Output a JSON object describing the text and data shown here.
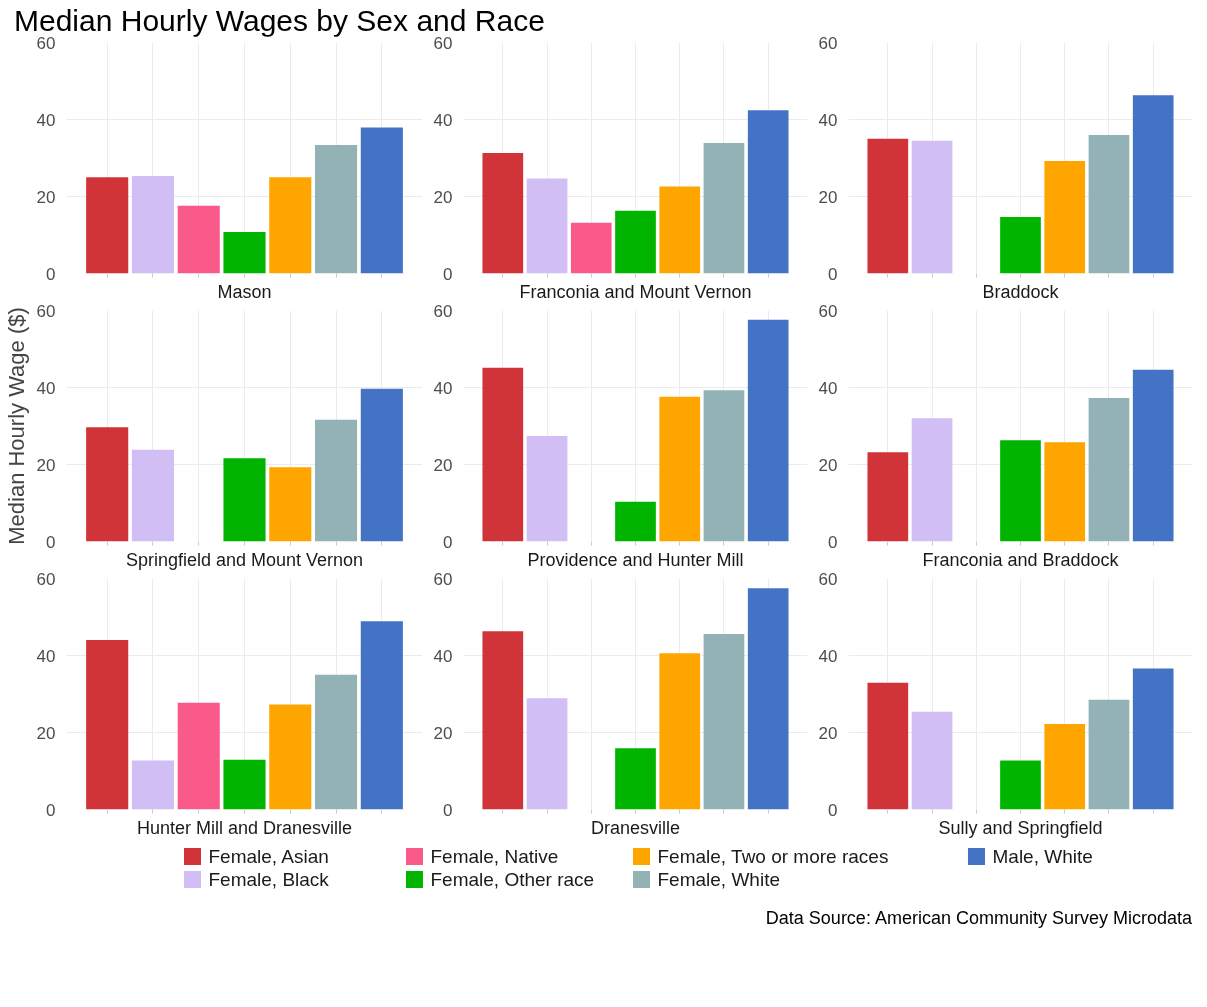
{
  "chart_data": [
    {
      "type": "bar",
      "title": "Median Hourly Wages by Sex and Race",
      "xlabel": "Mason",
      "categories": [
        null
      ],
      "ylim": [
        0,
        60
      ],
      "yticks": [
        0,
        20,
        40,
        60
      ],
      "grid": true,
      "series": [
        {
          "color": "#d13438",
          "values": [
            25
          ]
        },
        {
          "color": "#d1bef5",
          "values": [
            25.3
          ]
        },
        {
          "color": "#f95a8a",
          "values": [
            17.6
          ]
        },
        {
          "color": "#00b400",
          "values": [
            10.8
          ]
        },
        {
          "color": "#ffa500",
          "values": [
            25
          ]
        },
        {
          "color": "#93b2b5",
          "values": [
            33.4
          ]
        },
        {
          "color": "#4472c4",
          "values": [
            37.9
          ]
        }
      ]
    },
    {
      "type": "bar",
      "xlabel": "Franconia and Mount Vernon",
      "categories": [
        null
      ],
      "ylim": [
        0,
        60
      ],
      "yticks": [
        0,
        20,
        40,
        60
      ],
      "grid": true,
      "series": [
        {
          "color": "#d13438",
          "values": [
            31.3
          ]
        },
        {
          "color": "#d1bef5",
          "values": [
            24.7
          ]
        },
        {
          "color": "#f95a8a",
          "values": [
            13.2
          ]
        },
        {
          "color": "#00b400",
          "values": [
            16.3
          ]
        },
        {
          "color": "#ffa500",
          "values": [
            22.6
          ]
        },
        {
          "color": "#93b2b5",
          "values": [
            33.9
          ]
        },
        {
          "color": "#4472c4",
          "values": [
            42.4
          ]
        }
      ]
    },
    {
      "type": "bar",
      "xlabel": "Braddock",
      "categories": [
        null
      ],
      "ylim": [
        0,
        60
      ],
      "yticks": [
        0,
        20,
        40,
        60
      ],
      "grid": true,
      "series": [
        {
          "color": "#d13438",
          "values": [
            35
          ]
        },
        {
          "color": "#d1bef5",
          "values": [
            34.5
          ]
        },
        {
          "color": "#f95a8a",
          "values": [
            null
          ]
        },
        {
          "color": "#00b400",
          "values": [
            14.7
          ]
        },
        {
          "color": "#ffa500",
          "values": [
            29.2
          ]
        },
        {
          "color": "#93b2b5",
          "values": [
            36
          ]
        },
        {
          "color": "#4472c4",
          "values": [
            46.3
          ]
        }
      ]
    },
    {
      "type": "bar",
      "xlabel": "Springfield and Mount Vernon",
      "ylabel": "Median Hourly Wage ($)",
      "categories": [
        null
      ],
      "ylim": [
        0,
        60
      ],
      "yticks": [
        0,
        20,
        40,
        60
      ],
      "grid": true,
      "series": [
        {
          "color": "#d13438",
          "values": [
            29.7
          ]
        },
        {
          "color": "#d1bef5",
          "values": [
            23.8
          ]
        },
        {
          "color": "#f95a8a",
          "values": [
            null
          ]
        },
        {
          "color": "#00b400",
          "values": [
            21.6
          ]
        },
        {
          "color": "#ffa500",
          "values": [
            19.3
          ]
        },
        {
          "color": "#93b2b5",
          "values": [
            31.6
          ]
        },
        {
          "color": "#4472c4",
          "values": [
            39.7
          ]
        }
      ]
    },
    {
      "type": "bar",
      "xlabel": "Providence and Hunter Mill",
      "categories": [
        null
      ],
      "ylim": [
        0,
        60
      ],
      "yticks": [
        0,
        20,
        40,
        60
      ],
      "grid": true,
      "series": [
        {
          "color": "#d13438",
          "values": [
            45.1
          ]
        },
        {
          "color": "#d1bef5",
          "values": [
            27.4
          ]
        },
        {
          "color": "#f95a8a",
          "values": [
            null
          ]
        },
        {
          "color": "#00b400",
          "values": [
            10.3
          ]
        },
        {
          "color": "#ffa500",
          "values": [
            37.6
          ]
        },
        {
          "color": "#93b2b5",
          "values": [
            39.3
          ]
        },
        {
          "color": "#4472c4",
          "values": [
            57.6
          ]
        }
      ]
    },
    {
      "type": "bar",
      "xlabel": "Franconia and Braddock",
      "categories": [
        null
      ],
      "ylim": [
        0,
        60
      ],
      "yticks": [
        0,
        20,
        40,
        60
      ],
      "grid": true,
      "series": [
        {
          "color": "#d13438",
          "values": [
            23.2
          ]
        },
        {
          "color": "#d1bef5",
          "values": [
            32
          ]
        },
        {
          "color": "#f95a8a",
          "values": [
            null
          ]
        },
        {
          "color": "#00b400",
          "values": [
            26.3
          ]
        },
        {
          "color": "#ffa500",
          "values": [
            25.8
          ]
        },
        {
          "color": "#93b2b5",
          "values": [
            37.3
          ]
        },
        {
          "color": "#4472c4",
          "values": [
            44.6
          ]
        }
      ]
    },
    {
      "type": "bar",
      "xlabel": "Hunter Mill and Dranesville",
      "categories": [
        null
      ],
      "ylim": [
        0,
        60
      ],
      "yticks": [
        0,
        20,
        40,
        60
      ],
      "grid": true,
      "series": [
        {
          "color": "#d13438",
          "values": [
            44
          ]
        },
        {
          "color": "#d1bef5",
          "values": [
            12.7
          ]
        },
        {
          "color": "#f95a8a",
          "values": [
            27.7
          ]
        },
        {
          "color": "#00b400",
          "values": [
            12.9
          ]
        },
        {
          "color": "#ffa500",
          "values": [
            27.3
          ]
        },
        {
          "color": "#93b2b5",
          "values": [
            35
          ]
        },
        {
          "color": "#4472c4",
          "values": [
            48.9
          ]
        }
      ]
    },
    {
      "type": "bar",
      "xlabel": "Dranesville",
      "categories": [
        null
      ],
      "ylim": [
        0,
        60
      ],
      "yticks": [
        0,
        20,
        40,
        60
      ],
      "grid": true,
      "legend": "bottom",
      "series": [
        {
          "name": "Female, Asian",
          "color": "#d13438",
          "values": [
            46.3
          ]
        },
        {
          "name": "Female, Black",
          "color": "#d1bef5",
          "values": [
            28.9
          ]
        },
        {
          "name": "Female, Native",
          "color": "#f95a8a",
          "values": [
            null
          ]
        },
        {
          "name": "Female, Other race",
          "color": "#00b400",
          "values": [
            15.9
          ]
        },
        {
          "name": "Female, Two or more races",
          "color": "#ffa500",
          "values": [
            40.6
          ]
        },
        {
          "name": "Female, White",
          "color": "#93b2b5",
          "values": [
            45.6
          ]
        },
        {
          "name": "Male, White",
          "color": "#4472c4",
          "values": [
            57.5
          ]
        }
      ]
    },
    {
      "type": "bar",
      "xlabel": "Sully and Springfield",
      "categories": [
        null
      ],
      "ylim": [
        0,
        60
      ],
      "yticks": [
        0,
        20,
        40,
        60
      ],
      "grid": true,
      "annotations": [
        "Data Source: American Community Survey Microdata"
      ],
      "series": [
        {
          "color": "#d13438",
          "values": [
            32.9
          ]
        },
        {
          "color": "#d1bef5",
          "values": [
            25.4
          ]
        },
        {
          "color": "#f95a8a",
          "values": [
            null
          ]
        },
        {
          "color": "#00b400",
          "values": [
            12.7
          ]
        },
        {
          "color": "#ffa500",
          "values": [
            22.2
          ]
        },
        {
          "color": "#93b2b5",
          "values": [
            28.5
          ]
        },
        {
          "color": "#4472c4",
          "values": [
            36.6
          ]
        }
      ]
    }
  ]
}
